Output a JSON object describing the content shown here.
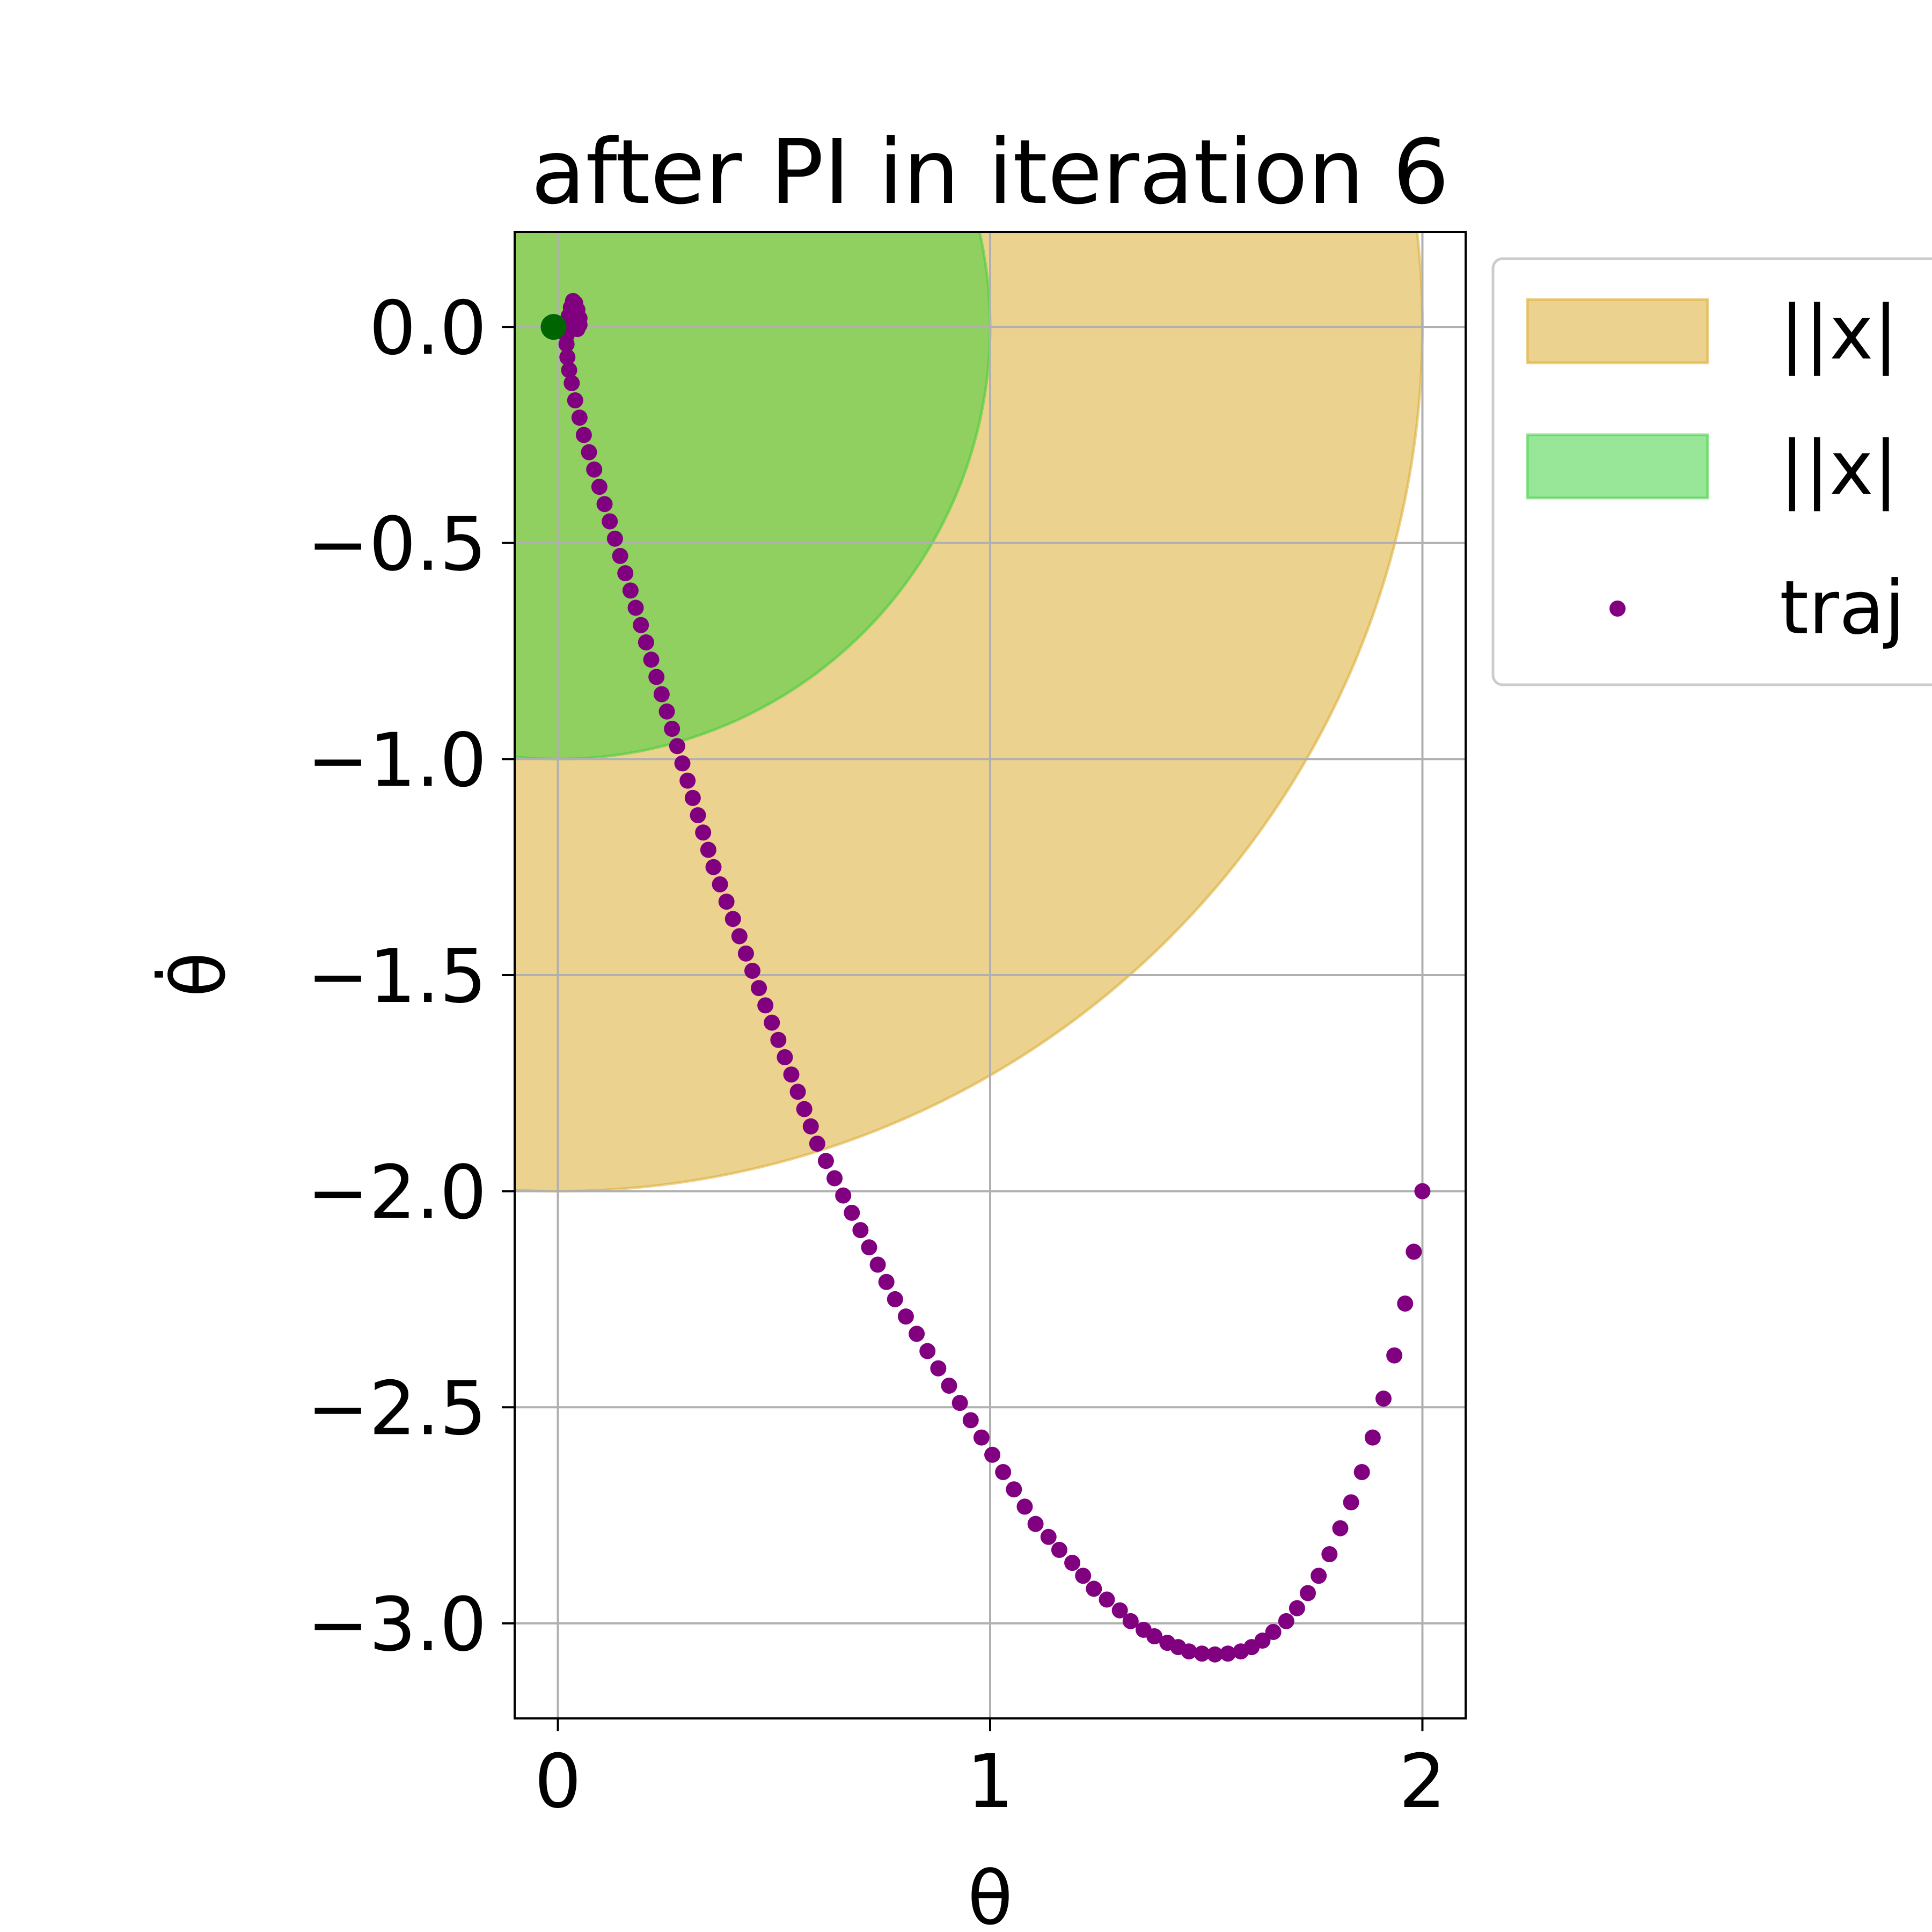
{
  "chart_data": {
    "type": "scatter",
    "title": "after PI in iteration 6",
    "xlabel": "θ",
    "ylabel": "θ̇",
    "xlim": [
      -0.1,
      2.1
    ],
    "ylim": [
      -3.22,
      0.22
    ],
    "xticks": [
      0,
      1,
      2
    ],
    "yticks": [
      0.0,
      -0.5,
      -1.0,
      -1.5,
      -2.0,
      -2.5,
      -3.0
    ],
    "xtick_labels": [
      "0",
      "1",
      "2"
    ],
    "ytick_labels": [
      "0.0",
      "−0.5",
      "−1.0",
      "−1.5",
      "−2.0",
      "−2.5",
      "−3.0"
    ],
    "grid": true,
    "legend_placement": "outside upper right",
    "regions": [
      {
        "name": "||x|",
        "shape": "disk",
        "center": [
          0,
          0
        ],
        "radius": 2,
        "color": "#daa520"
      },
      {
        "name": "||x|",
        "shape": "disk",
        "center": [
          0,
          0
        ],
        "radius": 1,
        "color": "#32cd32"
      }
    ],
    "origin_marker": {
      "x": 0,
      "y": 0,
      "color": "#006400"
    },
    "series": [
      {
        "name": "traj",
        "color": "#800080",
        "points": [
          [
            2.0,
            -2.0
          ],
          [
            1.98,
            -2.14
          ],
          [
            1.96,
            -2.26
          ],
          [
            1.935,
            -2.38
          ],
          [
            1.91,
            -2.48
          ],
          [
            1.885,
            -2.57
          ],
          [
            1.86,
            -2.65
          ],
          [
            1.835,
            -2.72
          ],
          [
            1.81,
            -2.78
          ],
          [
            1.785,
            -2.84
          ],
          [
            1.76,
            -2.89
          ],
          [
            1.735,
            -2.93
          ],
          [
            1.71,
            -2.965
          ],
          [
            1.685,
            -2.995
          ],
          [
            1.655,
            -3.02
          ],
          [
            1.63,
            -3.04
          ],
          [
            1.605,
            -3.055
          ],
          [
            1.58,
            -3.065
          ],
          [
            1.55,
            -3.07
          ],
          [
            1.52,
            -3.072
          ],
          [
            1.49,
            -3.07
          ],
          [
            1.46,
            -3.065
          ],
          [
            1.435,
            -3.055
          ],
          [
            1.41,
            -3.045
          ],
          [
            1.38,
            -3.03
          ],
          [
            1.355,
            -3.015
          ],
          [
            1.325,
            -2.995
          ],
          [
            1.3,
            -2.97
          ],
          [
            1.27,
            -2.945
          ],
          [
            1.24,
            -2.92
          ],
          [
            1.215,
            -2.89
          ],
          [
            1.19,
            -2.86
          ],
          [
            1.16,
            -2.83
          ],
          [
            1.135,
            -2.8
          ],
          [
            1.105,
            -2.77
          ],
          [
            1.08,
            -2.73
          ],
          [
            1.055,
            -2.69
          ],
          [
            1.03,
            -2.65
          ],
          [
            1.005,
            -2.61
          ],
          [
            0.98,
            -2.57
          ],
          [
            0.955,
            -2.53
          ],
          [
            0.93,
            -2.49
          ],
          [
            0.905,
            -2.45
          ],
          [
            0.88,
            -2.41
          ],
          [
            0.855,
            -2.37
          ],
          [
            0.83,
            -2.33
          ],
          [
            0.805,
            -2.29
          ],
          [
            0.78,
            -2.25
          ],
          [
            0.76,
            -2.21
          ],
          [
            0.74,
            -2.17
          ],
          [
            0.72,
            -2.13
          ],
          [
            0.7,
            -2.09
          ],
          [
            0.68,
            -2.05
          ],
          [
            0.66,
            -2.01
          ],
          [
            0.64,
            -1.97
          ],
          [
            0.62,
            -1.93
          ],
          [
            0.6,
            -1.89
          ],
          [
            0.585,
            -1.85
          ],
          [
            0.57,
            -1.81
          ],
          [
            0.555,
            -1.77
          ],
          [
            0.54,
            -1.73
          ],
          [
            0.525,
            -1.69
          ],
          [
            0.51,
            -1.65
          ],
          [
            0.495,
            -1.61
          ],
          [
            0.48,
            -1.57
          ],
          [
            0.465,
            -1.53
          ],
          [
            0.45,
            -1.49
          ],
          [
            0.435,
            -1.45
          ],
          [
            0.42,
            -1.41
          ],
          [
            0.405,
            -1.37
          ],
          [
            0.39,
            -1.33
          ],
          [
            0.375,
            -1.29
          ],
          [
            0.36,
            -1.25
          ],
          [
            0.348,
            -1.21
          ],
          [
            0.336,
            -1.17
          ],
          [
            0.324,
            -1.13
          ],
          [
            0.312,
            -1.09
          ],
          [
            0.3,
            -1.05
          ],
          [
            0.288,
            -1.01
          ],
          [
            0.276,
            -0.97
          ],
          [
            0.264,
            -0.93
          ],
          [
            0.252,
            -0.89
          ],
          [
            0.24,
            -0.85
          ],
          [
            0.228,
            -0.81
          ],
          [
            0.216,
            -0.77
          ],
          [
            0.204,
            -0.73
          ],
          [
            0.192,
            -0.69
          ],
          [
            0.18,
            -0.65
          ],
          [
            0.168,
            -0.61
          ],
          [
            0.156,
            -0.57
          ],
          [
            0.144,
            -0.53
          ],
          [
            0.132,
            -0.49
          ],
          [
            0.12,
            -0.45
          ],
          [
            0.108,
            -0.41
          ],
          [
            0.096,
            -0.37
          ],
          [
            0.084,
            -0.33
          ],
          [
            0.072,
            -0.29
          ],
          [
            0.06,
            -0.25
          ],
          [
            0.05,
            -0.21
          ],
          [
            0.04,
            -0.17
          ],
          [
            0.032,
            -0.13
          ],
          [
            0.026,
            -0.1
          ],
          [
            0.022,
            -0.07
          ],
          [
            0.02,
            -0.04
          ],
          [
            0.02,
            -0.02
          ],
          [
            0.022,
            0.0
          ],
          [
            0.025,
            0.025
          ],
          [
            0.03,
            0.045
          ],
          [
            0.035,
            0.06
          ],
          [
            0.04,
            0.055
          ],
          [
            0.045,
            0.04
          ],
          [
            0.05,
            0.02
          ],
          [
            0.05,
            0.005
          ],
          [
            0.045,
            -0.005
          ],
          [
            0.035,
            0.0
          ],
          [
            0.03,
            0.02
          ],
          [
            0.032,
            0.04
          ],
          [
            0.038,
            0.035
          ],
          [
            0.04,
            0.02
          ],
          [
            0.036,
            0.01
          ]
        ]
      }
    ]
  },
  "legend": {
    "items": [
      {
        "label": "||x|",
        "swatch": "patch",
        "color": "#daa520"
      },
      {
        "label": "||x|",
        "swatch": "patch",
        "color": "#32cd32"
      },
      {
        "label": "traj",
        "swatch": "dot",
        "color": "#800080"
      }
    ]
  }
}
